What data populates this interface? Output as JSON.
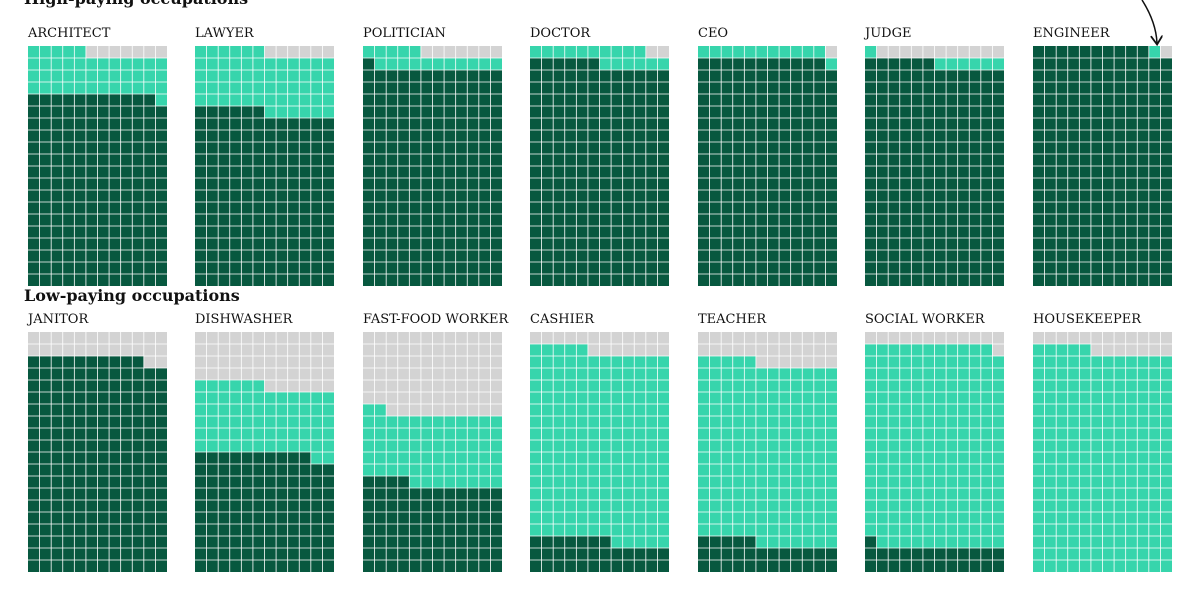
{
  "sections": [
    {
      "title": "High-paying occupations"
    },
    {
      "title": "Low-paying occupations"
    }
  ],
  "colors": {
    "dark": "#07583f",
    "light": "#37d5ac",
    "empty": "#d3d3d3",
    "gridline": "#ffffff"
  },
  "chart_data": {
    "type": "waffle",
    "rows": 20,
    "cols": 12,
    "series": [
      {
        "color": "#07583f"
      },
      {
        "color": "#37d5ac"
      },
      {
        "color": "#d3d3d3"
      }
    ],
    "panels": [
      {
        "section": 0,
        "label": "ARCHITECT",
        "dark": 191,
        "light": 42,
        "empty": 7
      },
      {
        "section": 0,
        "label": "LAWYER",
        "dark": 174,
        "light": 60,
        "empty": 6
      },
      {
        "section": 0,
        "label": "POLITICIAN",
        "dark": 217,
        "light": 16,
        "empty": 7
      },
      {
        "section": 0,
        "label": "DOCTOR",
        "dark": 222,
        "light": 16,
        "empty": 2
      },
      {
        "section": 0,
        "label": "CEO",
        "dark": 227,
        "light": 12,
        "empty": 1
      },
      {
        "section": 0,
        "label": "JUDGE",
        "dark": 222,
        "light": 7,
        "empty": 11
      },
      {
        "section": 0,
        "label": "ENGINEER",
        "dark": 238,
        "light": 1,
        "empty": 1
      },
      {
        "section": 1,
        "label": "JANITOR",
        "dark": 214,
        "light": 0,
        "empty": 26
      },
      {
        "section": 1,
        "label": "DISHWASHER",
        "dark": 118,
        "light": 68,
        "empty": 54
      },
      {
        "section": 1,
        "label": "FAST-FOOD WORKER",
        "dark": 88,
        "light": 70,
        "empty": 82
      },
      {
        "section": 1,
        "label": "CASHIER",
        "dark": 31,
        "light": 190,
        "empty": 19
      },
      {
        "section": 1,
        "label": "TEACHER",
        "dark": 29,
        "light": 180,
        "empty": 31
      },
      {
        "section": 1,
        "label": "SOCIAL WORKER",
        "dark": 25,
        "light": 202,
        "empty": 13
      },
      {
        "section": 1,
        "label": "HOUSEKEEPER",
        "dark": 0,
        "light": 221,
        "empty": 19
      }
    ]
  }
}
